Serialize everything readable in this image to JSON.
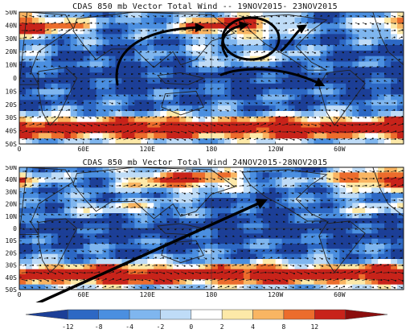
{
  "panels": [
    {
      "title": "CDAS 850 mb Vector Total Wind -- 19NOV2015- 23NOV2015",
      "lat_labels": [
        "50N",
        "40N",
        "30N",
        "20N",
        "10N",
        "0",
        "10S",
        "20S",
        "30S",
        "40S",
        "50S"
      ],
      "lon_labels": [
        "0",
        "60E",
        "120E",
        "180",
        "120W",
        "60W"
      ]
    },
    {
      "title": "CDAS 850 mb Vector Total Wind 24NOV2015-28NOV2015",
      "lat_labels": [
        "50N",
        "40N",
        "30N",
        "20N",
        "10N",
        "0",
        "10S",
        "20S",
        "30S",
        "40S",
        "50S"
      ],
      "lon_labels": [
        "0",
        "60E",
        "120E",
        "180",
        "120W",
        "60W"
      ]
    }
  ],
  "colorbar": {
    "ticks": [
      "-12",
      "-8",
      "-4",
      "-2",
      "0",
      "2",
      "4",
      "8",
      "12"
    ],
    "colors": [
      "#1c3f97",
      "#2d68c4",
      "#4b8fe0",
      "#7fb6ef",
      "#bfdcf7",
      "#ffffff",
      "#fde9a8",
      "#f9b562",
      "#ec6c2c",
      "#c8231a",
      "#8b0e0e"
    ]
  }
}
